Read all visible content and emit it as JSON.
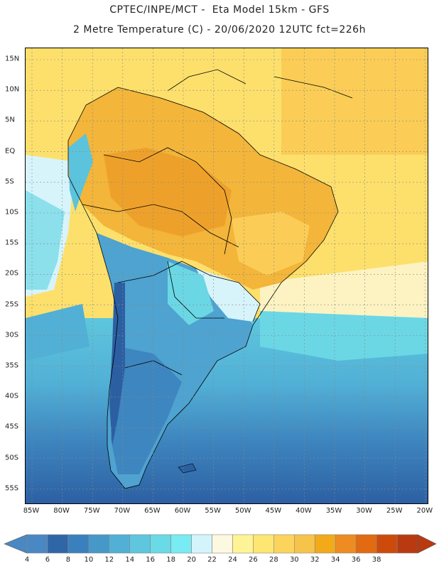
{
  "header": {
    "line1": "CPTEC/INPE/MCT -  Eta Model 15km - GFS",
    "line2": "2 Metre Temperature (C) - 20/06/2020 12UTC fct=226h"
  },
  "map": {
    "lat_labels": [
      "15N",
      "10N",
      "5N",
      "EQ",
      "5S",
      "10S",
      "15S",
      "20S",
      "25S",
      "30S",
      "35S",
      "40S",
      "45S",
      "50S",
      "55S"
    ],
    "lon_labels": [
      "85W",
      "80W",
      "75W",
      "70W",
      "65W",
      "60W",
      "55W",
      "50W",
      "45W",
      "40W",
      "35W",
      "30W",
      "25W",
      "20W"
    ]
  },
  "colorbar": {
    "labels": [
      "4",
      "6",
      "8",
      "10",
      "12",
      "14",
      "16",
      "18",
      "20",
      "22",
      "24",
      "26",
      "28",
      "30",
      "32",
      "34",
      "36",
      "38"
    ],
    "colors": [
      "#4a88c4",
      "#2f66a8",
      "#3a80bc",
      "#4698c8",
      "#52b0d6",
      "#5ec6de",
      "#6adae6",
      "#78ecf2",
      "#d4f4fc",
      "#fdf8e0",
      "#fef496",
      "#fee672",
      "#fcd45c",
      "#f6c44a",
      "#f3aa1a",
      "#ee8c22",
      "#e26a10",
      "#cc4b0a",
      "#b93a10"
    ],
    "left_arrow_color": "#4a88c4",
    "right_arrow_color": "#b93a10"
  },
  "palette": {
    "very_cold": "#2c5fa2",
    "cold": "#3e86bf",
    "cool": "#4ea3d0",
    "mild": "#5cc3dc",
    "cyan": "#6bd7e5",
    "pale": "#d7f4fb",
    "warm_pale": "#fdf3c2",
    "warm": "#fde06c",
    "hot": "#fbcd56",
    "hotter": "#f3b53a"
  }
}
